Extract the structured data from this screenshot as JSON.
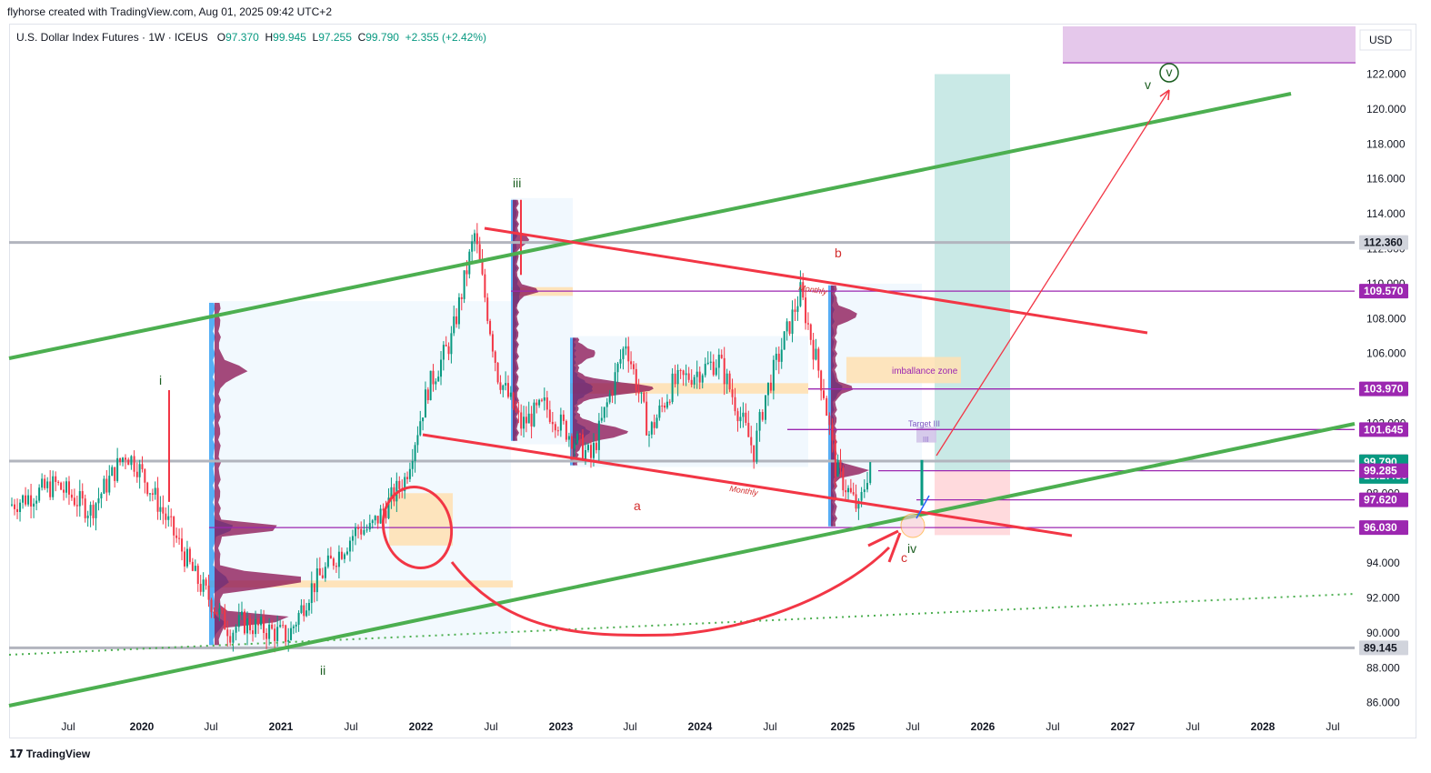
{
  "header": {
    "author_line": "flyhorse created with TradingView.com, Aug 01, 2025 09:42 UTC+2"
  },
  "legend": {
    "symbol": "U.S. Dollar Index Futures · 1W · ICEUS",
    "o_label": "O",
    "o": "97.370",
    "h_label": "H",
    "h": "99.945",
    "l_label": "L",
    "l": "97.255",
    "c_label": "C",
    "c": "99.790",
    "change": "+2.355 (+2.42%)"
  },
  "currency": "USD",
  "footer": {
    "brand": "TradingView",
    "logo": "tradingview-logo"
  },
  "colors": {
    "green_trend": "#4caf50",
    "red_trend": "#f23645",
    "purple_level": "#9c27b0",
    "gray_level": "#b2b5be",
    "bull_candle": "#089981",
    "bear_candle": "#f23645",
    "volume_blue": "#2196f3",
    "volume_maroon": "#880e4f",
    "target_green_zone": "#b2dfdb",
    "stop_red_zone": "#ffcdd2",
    "purple_zone": "#e1bee7",
    "orange_zone": "#ffe0b2"
  },
  "chart_data": {
    "type": "candlestick",
    "ylim": [
      85.0,
      123.0
    ],
    "y_ticks": [
      "122.000",
      "120.000",
      "118.000",
      "116.000",
      "114.000",
      "112.000",
      "110.000",
      "108.000",
      "106.000",
      "104.000",
      "102.000",
      "100.000",
      "98.000",
      "96.000",
      "94.000",
      "92.000",
      "90.000",
      "88.000",
      "86.000"
    ],
    "x_ticks": [
      "Jul",
      "2020",
      "Jul",
      "2021",
      "Jul",
      "2022",
      "Jul",
      "2023",
      "Jul",
      "2024",
      "Jul",
      "2025",
      "Jul",
      "2026",
      "Jul",
      "2027",
      "Jul",
      "2028",
      "Jul"
    ],
    "price_badges": [
      {
        "value": "112.360",
        "kind": "gray"
      },
      {
        "value": "109.570",
        "kind": "purple"
      },
      {
        "value": "103.970",
        "kind": "purple"
      },
      {
        "value": "101.645",
        "kind": "purple"
      },
      {
        "value": "99.840",
        "kind": "gray"
      },
      {
        "value": "99.790",
        "kind": "current",
        "countdown": "13:27:30"
      },
      {
        "value": "99.285",
        "kind": "purple"
      },
      {
        "value": "97.620",
        "kind": "purple"
      },
      {
        "value": "96.030",
        "kind": "purple"
      },
      {
        "value": "89.145",
        "kind": "gray"
      }
    ],
    "wave_labels": [
      {
        "text": "i",
        "color": "green"
      },
      {
        "text": "ii",
        "color": "green"
      },
      {
        "text": "iii",
        "color": "green"
      },
      {
        "text": "iv",
        "color": "green"
      },
      {
        "text": "v",
        "color": "green"
      },
      {
        "text": "v",
        "color": "green",
        "circled": true
      },
      {
        "text": "a",
        "color": "red"
      },
      {
        "text": "b",
        "color": "red"
      },
      {
        "text": "c",
        "color": "red"
      }
    ],
    "annotations": [
      "imballance zone",
      "Target III",
      "III",
      "Monthly",
      "Monthly"
    ],
    "horizontal_levels": [
      112.36,
      109.57,
      103.97,
      101.645,
      99.84,
      99.285,
      97.62,
      96.03,
      89.145
    ],
    "last_close": 99.79,
    "series": [
      {
        "name": "weekly_close",
        "x": [
          "2019-05",
          "2019-09",
          "2019-12",
          "2020-03",
          "2020-04",
          "2020-06",
          "2020-09",
          "2020-12",
          "2021-01",
          "2021-05",
          "2021-07",
          "2021-11",
          "2021-12",
          "2022-03",
          "2022-05",
          "2022-07",
          "2022-09",
          "2022-11",
          "2023-01",
          "2023-03",
          "2023-07",
          "2023-10",
          "2023-12",
          "2024-02",
          "2024-06",
          "2024-09",
          "2024-10",
          "2025-01",
          "2025-03",
          "2025-04",
          "2025-06",
          "2025-07"
        ],
        "values": [
          97.3,
          98.5,
          97.0,
          100.3,
          99.6,
          97.2,
          93.2,
          90.1,
          90.6,
          89.8,
          92.6,
          96.0,
          95.9,
          98.8,
          104.0,
          106.8,
          112.8,
          104.8,
          101.9,
          103.0,
          100.0,
          106.7,
          101.4,
          104.2,
          105.6,
          100.4,
          103.6,
          109.5,
          103.8,
          99.5,
          97.0,
          99.8
        ]
      }
    ]
  }
}
